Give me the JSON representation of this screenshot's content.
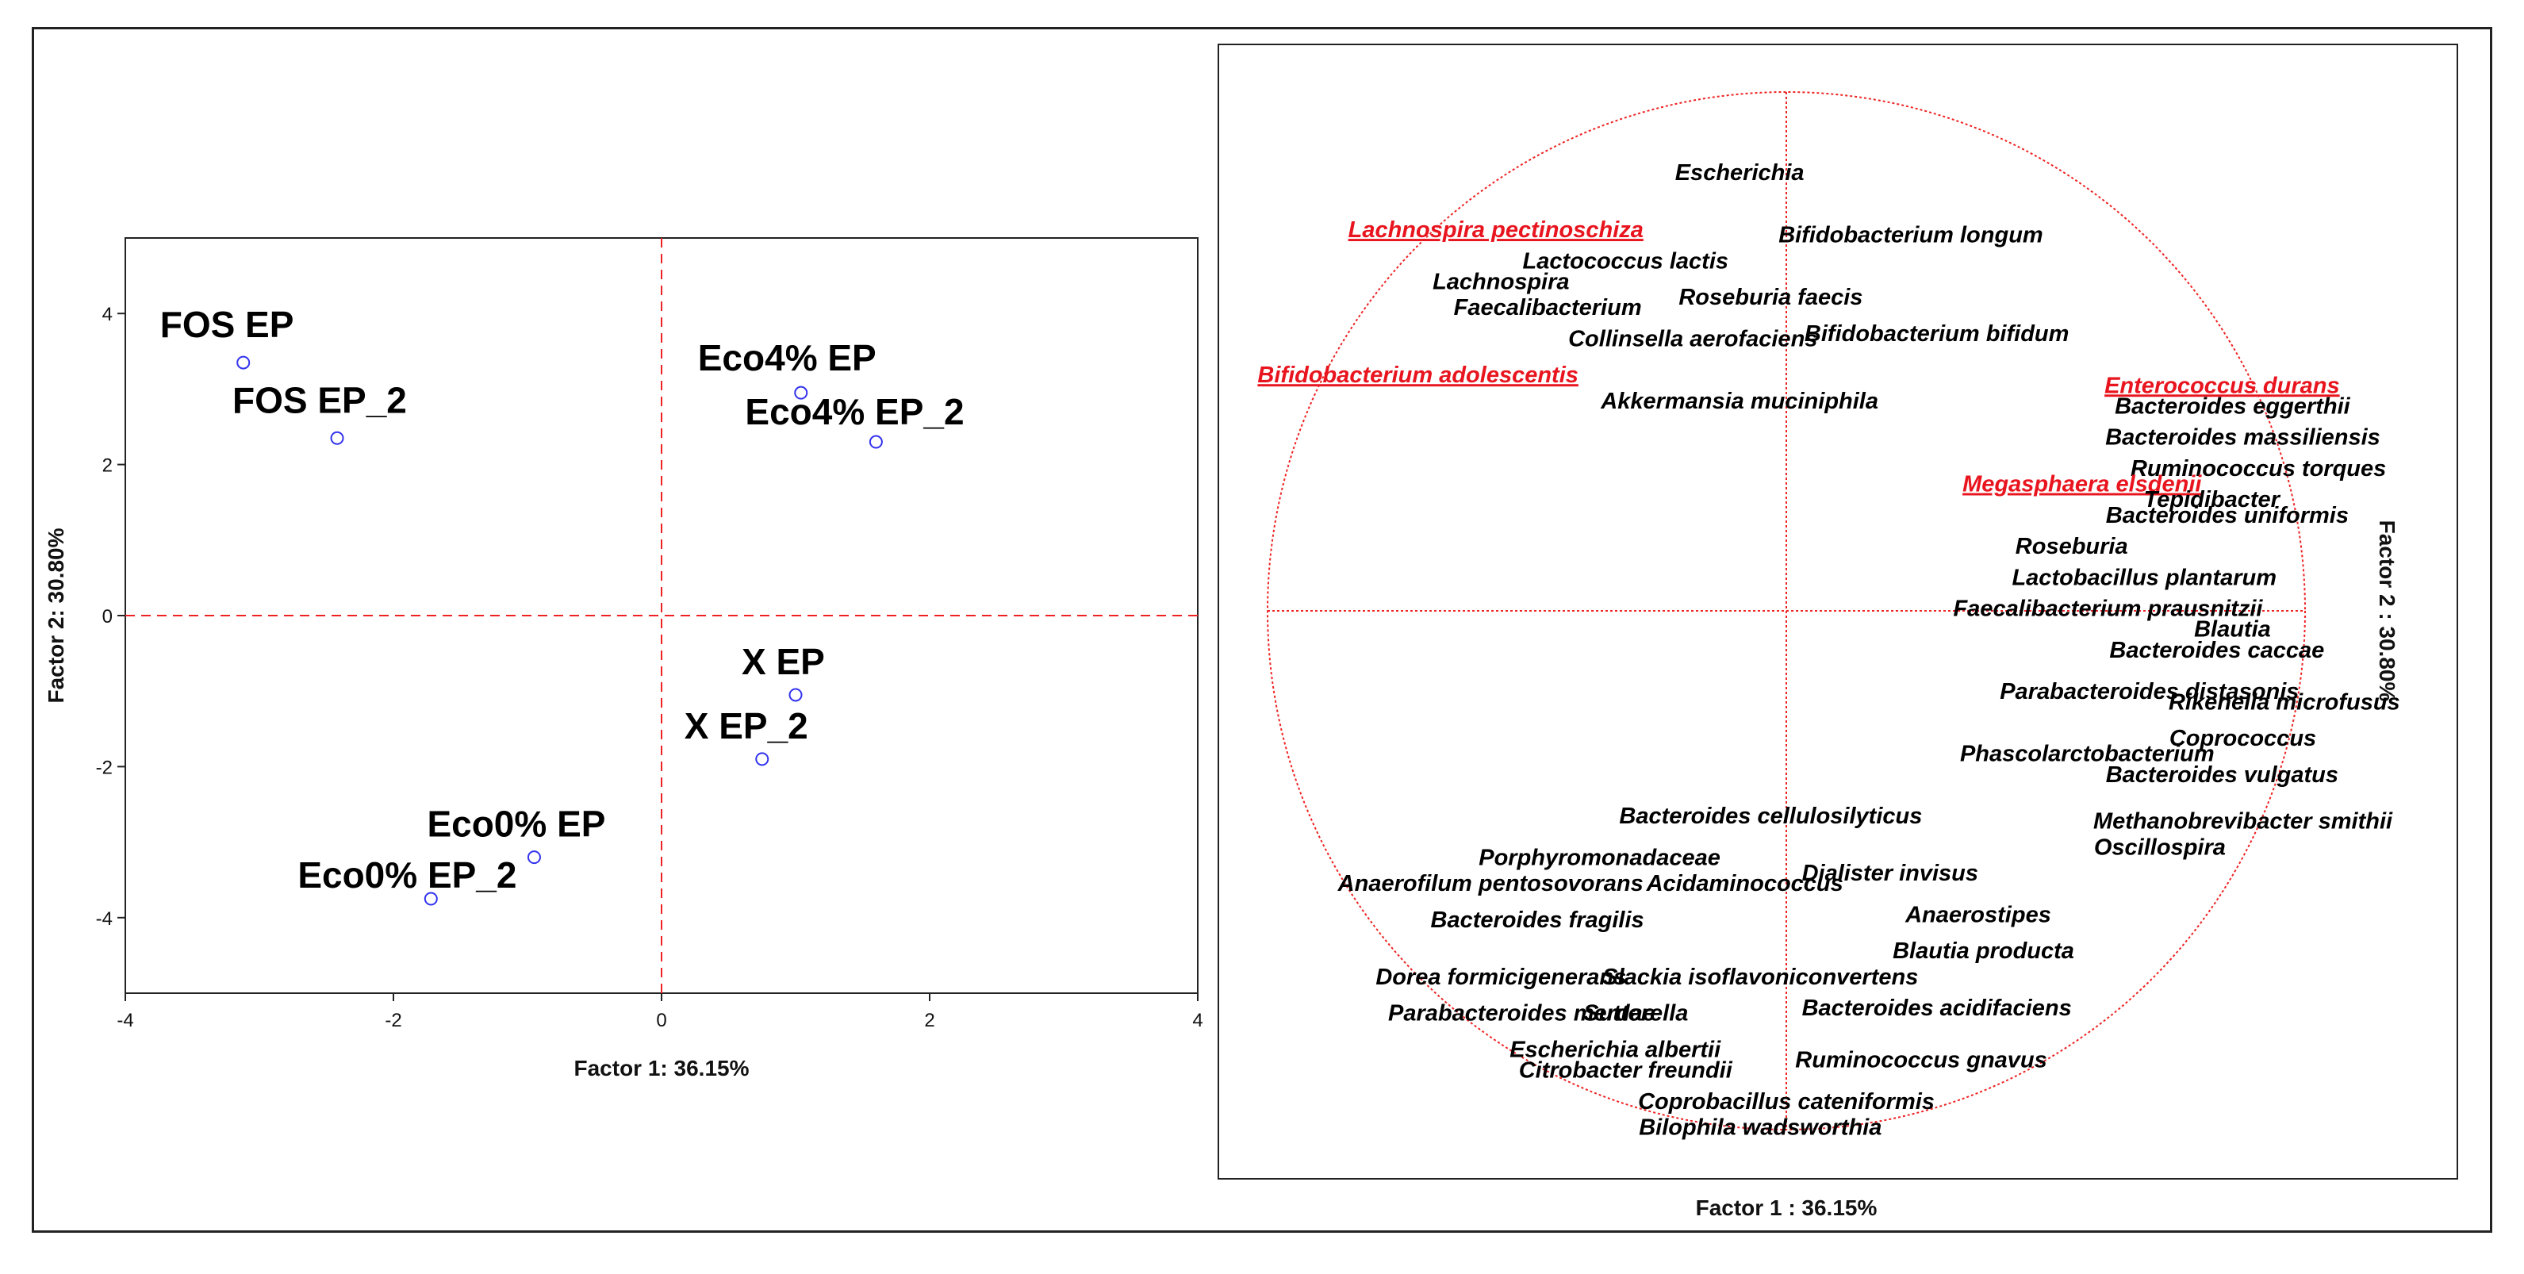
{
  "chart_data": [
    {
      "type": "scatter",
      "xlabel": "Factor 1: 36.15%",
      "ylabel": "Factor 2: 30.80%",
      "xlim": [
        -4,
        4
      ],
      "ylim": [
        -5,
        5
      ],
      "xticks": [
        "-4",
        "-2",
        "0",
        "2",
        "4"
      ],
      "yticks": [
        "4",
        "2",
        "0",
        "-2",
        "-4"
      ],
      "points": [
        {
          "label": "FOS EP",
          "x": -3.12,
          "y": 3.35
        },
        {
          "label": "FOS EP_2",
          "x": -2.42,
          "y": 2.35
        },
        {
          "label": "Eco4% EP",
          "x": 1.04,
          "y": 2.95
        },
        {
          "label": "Eco4% EP_2",
          "x": 1.6,
          "y": 2.3
        },
        {
          "label": "X EP",
          "x": 1.0,
          "y": -1.05
        },
        {
          "label": "X EP_2",
          "x": 0.75,
          "y": -1.9
        },
        {
          "label": "Eco0% EP",
          "x": -0.95,
          "y": -3.2
        },
        {
          "label": "Eco0% EP_2",
          "x": -1.72,
          "y": -3.75
        }
      ]
    },
    {
      "type": "scatter",
      "xlabel": "Factor 1 : 36.15%",
      "ylabel": "Factor 2 : 30.80%",
      "xlim": [
        -1,
        1
      ],
      "ylim": [
        -1,
        1
      ],
      "variables": [
        {
          "label": "Escherichia",
          "x": -0.09,
          "y": 0.83
        },
        {
          "label": "Lachnospira pectinoschiza",
          "x": -0.56,
          "y": 0.72,
          "highlight": true
        },
        {
          "label": "Bifidobacterium longum",
          "x": 0.24,
          "y": 0.71
        },
        {
          "label": "Lactococcus lactis",
          "x": -0.31,
          "y": 0.66
        },
        {
          "label": "Lachnospira",
          "x": -0.55,
          "y": 0.62
        },
        {
          "label": "Roseburia faecis",
          "x": -0.03,
          "y": 0.59
        },
        {
          "label": "Faecalibacterium",
          "x": -0.46,
          "y": 0.57
        },
        {
          "label": "Collinsella aerofaciens",
          "x": -0.18,
          "y": 0.51
        },
        {
          "label": "Bifidobacterium bifidum",
          "x": 0.29,
          "y": 0.52
        },
        {
          "label": "Bifidobacterium adolescentis",
          "x": -0.71,
          "y": 0.44,
          "highlight": true
        },
        {
          "label": "Akkermansia muciniphila",
          "x": -0.09,
          "y": 0.39
        },
        {
          "label": "Enterococcus durans",
          "x": 0.84,
          "y": 0.42,
          "highlight": true
        },
        {
          "label": "Bacteroides eggerthii",
          "x": 0.86,
          "y": 0.38
        },
        {
          "label": "Bacteroides massiliensis",
          "x": 0.88,
          "y": 0.32
        },
        {
          "label": "Ruminococcus torques",
          "x": 0.91,
          "y": 0.26
        },
        {
          "label": "Megasphaera elsdenii",
          "x": 0.57,
          "y": 0.23,
          "highlight": true
        },
        {
          "label": "Tepidibacter",
          "x": 0.82,
          "y": 0.2
        },
        {
          "label": "Bacteroides uniformis",
          "x": 0.85,
          "y": 0.17
        },
        {
          "label": "Roseburia",
          "x": 0.55,
          "y": 0.11
        },
        {
          "label": "Lactobacillus plantarum",
          "x": 0.69,
          "y": 0.05
        },
        {
          "label": "Faecalibacterium prausnitzii",
          "x": 0.62,
          "y": -0.01
        },
        {
          "label": "Blautia",
          "x": 0.86,
          "y": -0.05
        },
        {
          "label": "Bacteroides caccae",
          "x": 0.83,
          "y": -0.09
        },
        {
          "label": "Parabacteroides distasonis",
          "x": 0.7,
          "y": -0.17
        },
        {
          "label": "Rikenella microfusus",
          "x": 0.96,
          "y": -0.19
        },
        {
          "label": "Coprococcus",
          "x": 0.88,
          "y": -0.26
        },
        {
          "label": "Phascolarctobacterium",
          "x": 0.58,
          "y": -0.29
        },
        {
          "label": "Bacteroides vulgatus",
          "x": 0.84,
          "y": -0.33
        },
        {
          "label": "Bacteroides cellulosilyticus",
          "x": -0.03,
          "y": -0.41
        },
        {
          "label": "Methanobrevibacter smithii",
          "x": 0.88,
          "y": -0.42
        },
        {
          "label": "Oscillospira",
          "x": 0.72,
          "y": -0.47
        },
        {
          "label": "Porphyromonadaceae",
          "x": -0.36,
          "y": -0.49
        },
        {
          "label": "Dialister invisus",
          "x": 0.2,
          "y": -0.52
        },
        {
          "label": "Anaerofilum pentosovorans",
          "x": -0.57,
          "y": -0.54
        },
        {
          "label": "Acidaminococcus",
          "x": -0.08,
          "y": -0.54
        },
        {
          "label": "Anaerostipes",
          "x": 0.37,
          "y": -0.6
        },
        {
          "label": "Bacteroides fragilis",
          "x": -0.48,
          "y": -0.61
        },
        {
          "label": "Blautia producta",
          "x": 0.38,
          "y": -0.67
        },
        {
          "label": "Dorea formicigenerans",
          "x": -0.55,
          "y": -0.72
        },
        {
          "label": "Slackia isoflavoniconvertens",
          "x": -0.05,
          "y": -0.72
        },
        {
          "label": "Parabacteroides merdae",
          "x": -0.51,
          "y": -0.79
        },
        {
          "label": "Sutterella",
          "x": -0.29,
          "y": -0.79
        },
        {
          "label": "Bacteroides acidifaciens",
          "x": 0.29,
          "y": -0.78
        },
        {
          "label": "Escherichia albertii",
          "x": -0.33,
          "y": -0.86
        },
        {
          "label": "Ruminococcus gnavus",
          "x": 0.26,
          "y": -0.88
        },
        {
          "label": "Citrobacter freundii",
          "x": -0.31,
          "y": -0.9
        },
        {
          "label": "Coprobacillus cateniformis",
          "x": 0.0,
          "y": -0.96
        },
        {
          "label": "Bilophila wadsworthia",
          "x": -0.05,
          "y": -1.01
        }
      ]
    }
  ]
}
